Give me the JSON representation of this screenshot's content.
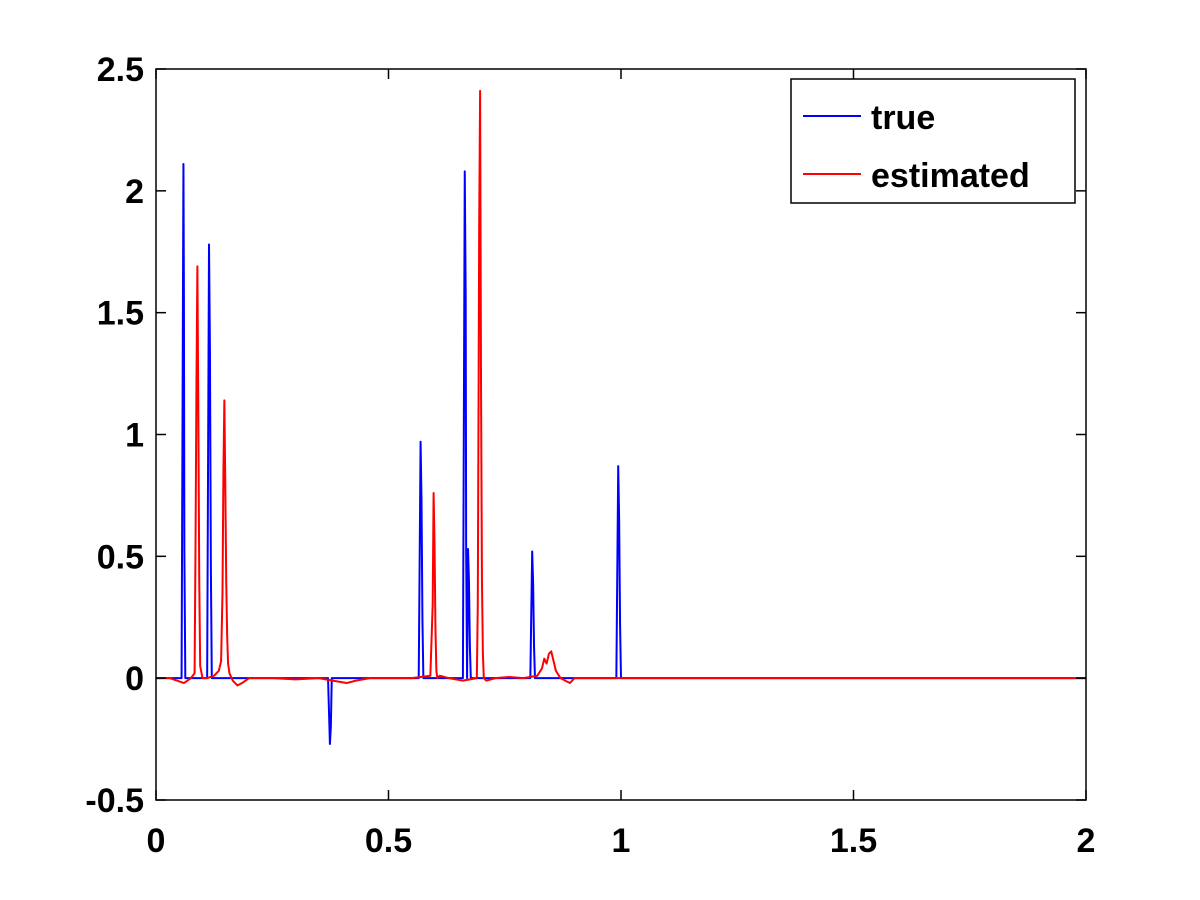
{
  "chart_data": {
    "type": "line",
    "title": "",
    "xlabel": "",
    "ylabel": "",
    "xlim": [
      0,
      2
    ],
    "ylim": [
      -0.5,
      2.5
    ],
    "x_ticks": [
      "0",
      "0.5",
      "1",
      "1.5",
      "2"
    ],
    "y_ticks": [
      "-0.5",
      "0",
      "0.5",
      "1",
      "1.5",
      "2",
      "2.5"
    ],
    "grid": false,
    "legend_position": "top-right",
    "series": [
      {
        "name": "true",
        "color": "#0000ff",
        "x": [
          0,
          0.055,
          0.056,
          0.058,
          0.059,
          0.06,
          0.061,
          0.063,
          0.065,
          0.11,
          0.111,
          0.113,
          0.114,
          0.116,
          0.118,
          0.12,
          0.37,
          0.371,
          0.373,
          0.374,
          0.376,
          0.378,
          0.565,
          0.566,
          0.568,
          0.569,
          0.571,
          0.573,
          0.575,
          0.66,
          0.661,
          0.663,
          0.664,
          0.666,
          0.667,
          0.669,
          0.671,
          0.673,
          0.675,
          0.677,
          0.679,
          0.68,
          0.805,
          0.806,
          0.808,
          0.809,
          0.811,
          0.813,
          0.815,
          0.99,
          0.991,
          0.993,
          0.994,
          0.996,
          0.998,
          1.0,
          2.0
        ],
        "y": [
          0,
          0,
          0.52,
          1.58,
          2.11,
          1.58,
          0.52,
          0,
          0,
          0,
          0.45,
          1.34,
          1.78,
          1.34,
          0.45,
          0,
          0,
          -0.07,
          -0.2,
          -0.27,
          -0.2,
          0,
          0,
          0.24,
          0.73,
          0.97,
          0.73,
          0.24,
          0,
          0,
          0.52,
          1.56,
          2.08,
          1.56,
          0.52,
          0,
          0.53,
          0.4,
          0.13,
          0,
          0,
          0,
          0,
          0.13,
          0.39,
          0.52,
          0.39,
          0.13,
          0,
          0,
          0.22,
          0.65,
          0.87,
          0.65,
          0.22,
          0,
          0
        ]
      },
      {
        "name": "estimated",
        "color": "#ff0000",
        "x": [
          0,
          0.03,
          0.045,
          0.06,
          0.075,
          0.083,
          0.085,
          0.087,
          0.089,
          0.091,
          0.093,
          0.095,
          0.1,
          0.11,
          0.125,
          0.135,
          0.14,
          0.143,
          0.145,
          0.147,
          0.149,
          0.151,
          0.153,
          0.155,
          0.158,
          0.165,
          0.175,
          0.185,
          0.2,
          0.25,
          0.3,
          0.35,
          0.38,
          0.41,
          0.43,
          0.46,
          0.5,
          0.55,
          0.59,
          0.595,
          0.597,
          0.599,
          0.601,
          0.603,
          0.605,
          0.61,
          0.63,
          0.66,
          0.69,
          0.692,
          0.694,
          0.695,
          0.697,
          0.699,
          0.701,
          0.703,
          0.705,
          0.71,
          0.73,
          0.76,
          0.79,
          0.82,
          0.83,
          0.835,
          0.84,
          0.845,
          0.85,
          0.855,
          0.86,
          0.87,
          0.88,
          0.89,
          0.9,
          0.95,
          1.0,
          2.0
        ],
        "y": [
          0,
          0,
          -0.01,
          -0.02,
          0,
          0.02,
          0.55,
          1.2,
          1.69,
          1.1,
          0.4,
          0.05,
          0,
          0,
          0.01,
          0.03,
          0.07,
          0.35,
          0.85,
          1.14,
          0.8,
          0.4,
          0.18,
          0.06,
          0.02,
          -0.01,
          -0.03,
          -0.02,
          0,
          0,
          -0.005,
          0,
          -0.01,
          -0.02,
          -0.01,
          0,
          0,
          0,
          0.01,
          0.3,
          0.76,
          0.55,
          0.2,
          0.03,
          0,
          0.01,
          0,
          -0.01,
          0,
          0.3,
          1.3,
          1.85,
          2.41,
          1.2,
          0.4,
          0.1,
          0,
          -0.01,
          0,
          0.005,
          0,
          0.01,
          0.04,
          0.08,
          0.06,
          0.1,
          0.11,
          0.07,
          0.03,
          0,
          -0.01,
          -0.02,
          0,
          0,
          0,
          0
        ]
      }
    ]
  }
}
